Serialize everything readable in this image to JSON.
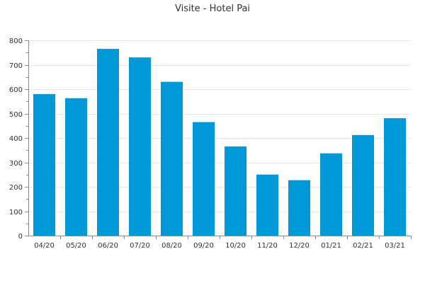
{
  "chart_data": {
    "type": "bar",
    "title": "Visite - Hotel Pai",
    "xlabel": "",
    "ylabel": "",
    "categories": [
      "04/20",
      "05/20",
      "06/20",
      "07/20",
      "08/20",
      "09/20",
      "10/20",
      "11/20",
      "12/20",
      "01/21",
      "02/21",
      "03/21"
    ],
    "values": [
      580,
      563,
      765,
      730,
      630,
      465,
      365,
      250,
      227,
      337,
      412,
      481
    ],
    "ylim": [
      0,
      800
    ],
    "yticks": [
      "0",
      "100",
      "200",
      "300",
      "400",
      "500",
      "600",
      "700",
      "800"
    ],
    "grid": true,
    "legend": "none",
    "colors": {
      "bar": "#0098d6",
      "grid": "#e6e6e6",
      "axis": "#8a8a8a",
      "text": "#333333"
    }
  }
}
